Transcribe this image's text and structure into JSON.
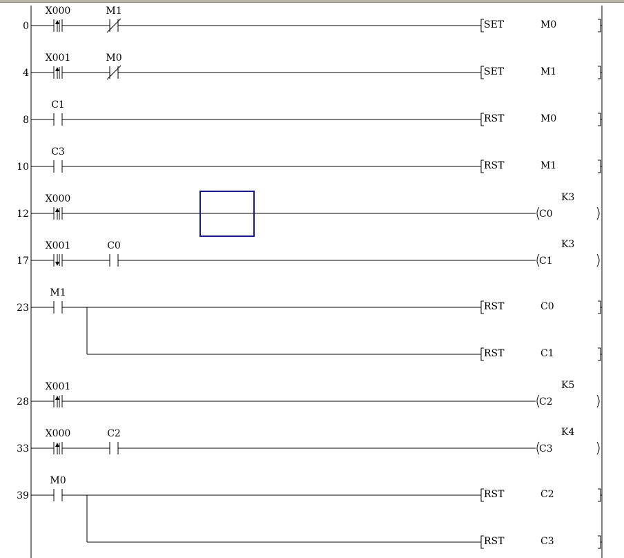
{
  "colors": {
    "line": "#000000",
    "cursor": "#1a1a8c",
    "background": "#ffffff"
  },
  "rungs": [
    {
      "step": "0",
      "contacts": [
        {
          "label": "X000",
          "type": "rising"
        },
        {
          "label": "M1",
          "type": "nc"
        }
      ],
      "outputs": [
        {
          "kind": "instr",
          "op": "SET",
          "dev": "M0"
        }
      ]
    },
    {
      "step": "4",
      "contacts": [
        {
          "label": "X001",
          "type": "rising"
        },
        {
          "label": "M0",
          "type": "nc"
        }
      ],
      "outputs": [
        {
          "kind": "instr",
          "op": "SET",
          "dev": "M1"
        }
      ]
    },
    {
      "step": "8",
      "contacts": [
        {
          "label": "C1",
          "type": "no"
        }
      ],
      "outputs": [
        {
          "kind": "instr",
          "op": "RST",
          "dev": "M0"
        }
      ]
    },
    {
      "step": "10",
      "contacts": [
        {
          "label": "C3",
          "type": "no"
        }
      ],
      "outputs": [
        {
          "kind": "instr",
          "op": "RST",
          "dev": "M1"
        }
      ]
    },
    {
      "step": "12",
      "contacts": [
        {
          "label": "X000",
          "type": "rising"
        }
      ],
      "outputs": [
        {
          "kind": "coil",
          "dev": "C0",
          "k": "K3"
        }
      ]
    },
    {
      "step": "17",
      "contacts": [
        {
          "label": "X001",
          "type": "falling"
        },
        {
          "label": "C0",
          "type": "no"
        }
      ],
      "outputs": [
        {
          "kind": "coil",
          "dev": "C1",
          "k": "K3"
        }
      ]
    },
    {
      "step": "23",
      "contacts": [
        {
          "label": "M1",
          "type": "no"
        }
      ],
      "outputs": [
        {
          "kind": "instr",
          "op": "RST",
          "dev": "C0"
        },
        {
          "kind": "instr",
          "op": "RST",
          "dev": "C1"
        }
      ]
    },
    {
      "step": "28",
      "contacts": [
        {
          "label": "X001",
          "type": "rising"
        }
      ],
      "outputs": [
        {
          "kind": "coil",
          "dev": "C2",
          "k": "K5"
        }
      ]
    },
    {
      "step": "33",
      "contacts": [
        {
          "label": "X000",
          "type": "rising"
        },
        {
          "label": "C2",
          "type": "no"
        }
      ],
      "outputs": [
        {
          "kind": "coil",
          "dev": "C3",
          "k": "K4"
        }
      ]
    },
    {
      "step": "39",
      "contacts": [
        {
          "label": "M0",
          "type": "no"
        }
      ],
      "outputs": [
        {
          "kind": "instr",
          "op": "RST",
          "dev": "C2"
        },
        {
          "kind": "instr",
          "op": "RST",
          "dev": "C3"
        }
      ]
    }
  ]
}
